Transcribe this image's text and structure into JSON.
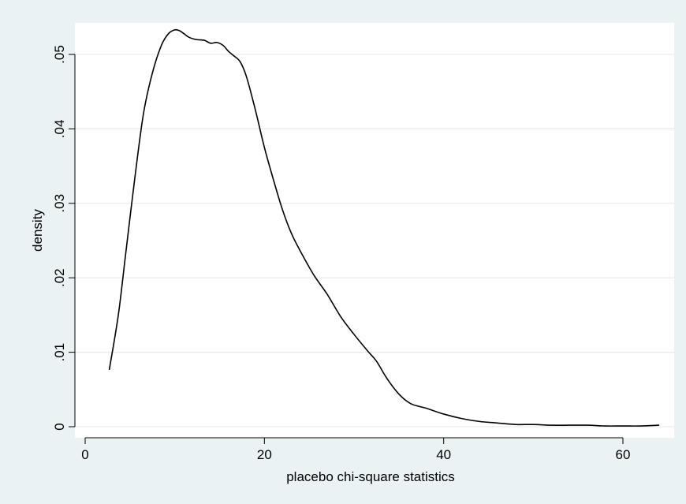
{
  "chart_data": {
    "type": "line",
    "title": "",
    "xlabel": "placebo chi-square statistics",
    "ylabel": "density",
    "xlim": [
      0,
      65
    ],
    "ylim": [
      0,
      0.053
    ],
    "x_ticks": [
      0,
      20,
      40,
      60
    ],
    "x_tick_labels": [
      "0",
      "20",
      "40",
      "60"
    ],
    "y_ticks": [
      0,
      0.01,
      0.02,
      0.03,
      0.04,
      0.05
    ],
    "y_tick_labels": [
      "0",
      ".01",
      ".02",
      ".03",
      ".04",
      ".05"
    ],
    "grid": "horizontal",
    "series": [
      {
        "x": [
          2.7,
          3.7,
          4.5,
          5.5,
          6.5,
          7.5,
          8.5,
          9.3,
          10.0,
          10.5,
          11.0,
          11.6,
          12.4,
          13.3,
          14.0,
          14.7,
          15.4,
          16.0,
          16.6,
          17.3,
          18.0,
          19.0,
          20.0,
          21.0,
          22.0,
          23.0,
          24.0,
          25.5,
          27.0,
          28.5,
          30.0,
          31.5,
          32.5,
          33.5,
          34.5,
          35.5,
          36.5,
          38.0,
          40.0,
          42.0,
          44.0,
          46.0,
          48.0,
          50.0,
          52.0,
          54.0,
          56.0,
          58.0,
          60.0,
          62.0,
          64.0
        ],
        "y": [
          0.0077,
          0.015,
          0.023,
          0.033,
          0.042,
          0.0475,
          0.0512,
          0.0528,
          0.0533,
          0.0532,
          0.0528,
          0.0523,
          0.052,
          0.0519,
          0.0515,
          0.0516,
          0.0512,
          0.0504,
          0.0498,
          0.049,
          0.047,
          0.0425,
          0.0375,
          0.0332,
          0.0292,
          0.026,
          0.0236,
          0.0204,
          0.0178,
          0.0148,
          0.0124,
          0.0102,
          0.0088,
          0.0068,
          0.0051,
          0.0038,
          0.003,
          0.0025,
          0.0017,
          0.0011,
          0.0007,
          0.0005,
          0.0003,
          0.0003,
          0.0002,
          0.0002,
          0.0002,
          0.0001,
          0.0001,
          0.0001,
          0.0002
        ],
        "color": "#000000"
      }
    ]
  }
}
